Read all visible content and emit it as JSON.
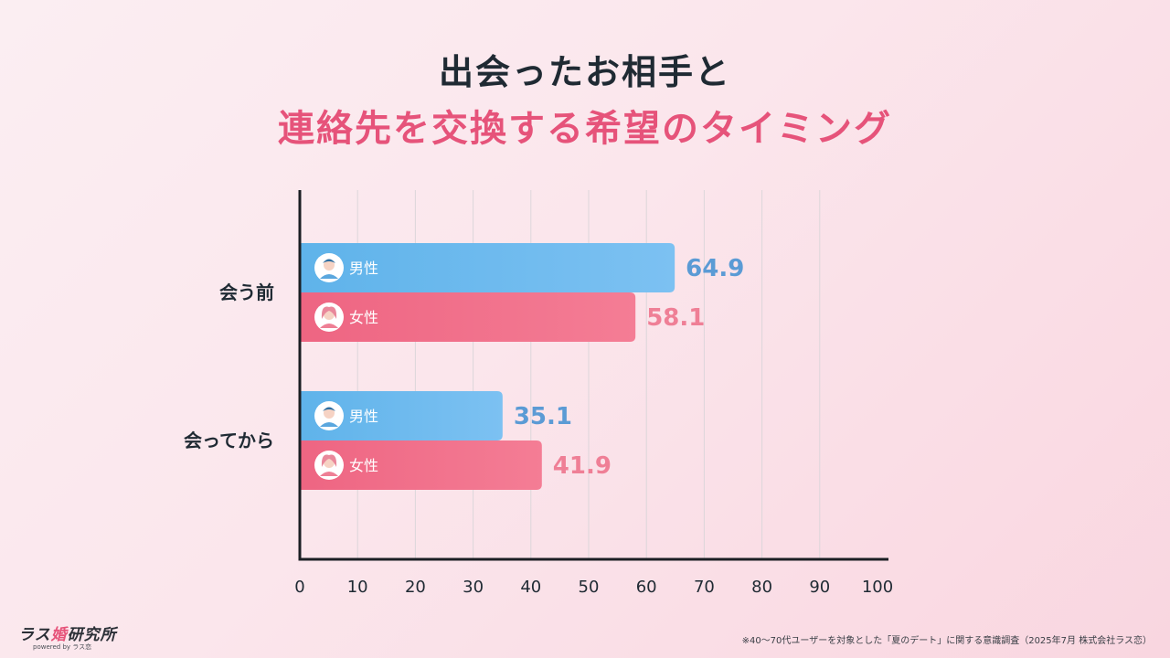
{
  "title": {
    "line1": "出会ったお相手と",
    "line2": "連絡先を交換する希望のタイミング"
  },
  "colors": {
    "male": "#6fb6ee",
    "female": "#f2728c",
    "male_text": "#5b9bd5",
    "female_text": "#ef7f96",
    "title_accent": "#e6537a"
  },
  "chart_data": {
    "type": "bar",
    "orientation": "horizontal",
    "categories": [
      "会う前",
      "会ってから"
    ],
    "series": [
      {
        "name": "男性",
        "icon": "male-avatar-icon",
        "values": [
          64.9,
          35.1
        ]
      },
      {
        "name": "女性",
        "icon": "female-avatar-icon",
        "values": [
          58.1,
          41.9
        ]
      }
    ],
    "value_labels": [
      [
        "64.9",
        "35.1"
      ],
      [
        "58.1",
        "41.9"
      ]
    ],
    "xlim": [
      0,
      100
    ],
    "x_ticks": [
      "0",
      "10",
      "20",
      "30",
      "40",
      "50",
      "60",
      "70",
      "80",
      "90",
      "100"
    ],
    "grid": true,
    "legend": "none"
  },
  "logo": {
    "main_prefix": "ラス",
    "main_accent": "婚",
    "main_suffix": "研究所",
    "sub": "powered by ラス恋"
  },
  "footnote": "※40〜70代ユーザーを対象とした「夏のデート」に関する意識調査（2025年7月 株式会社ラス恋）"
}
